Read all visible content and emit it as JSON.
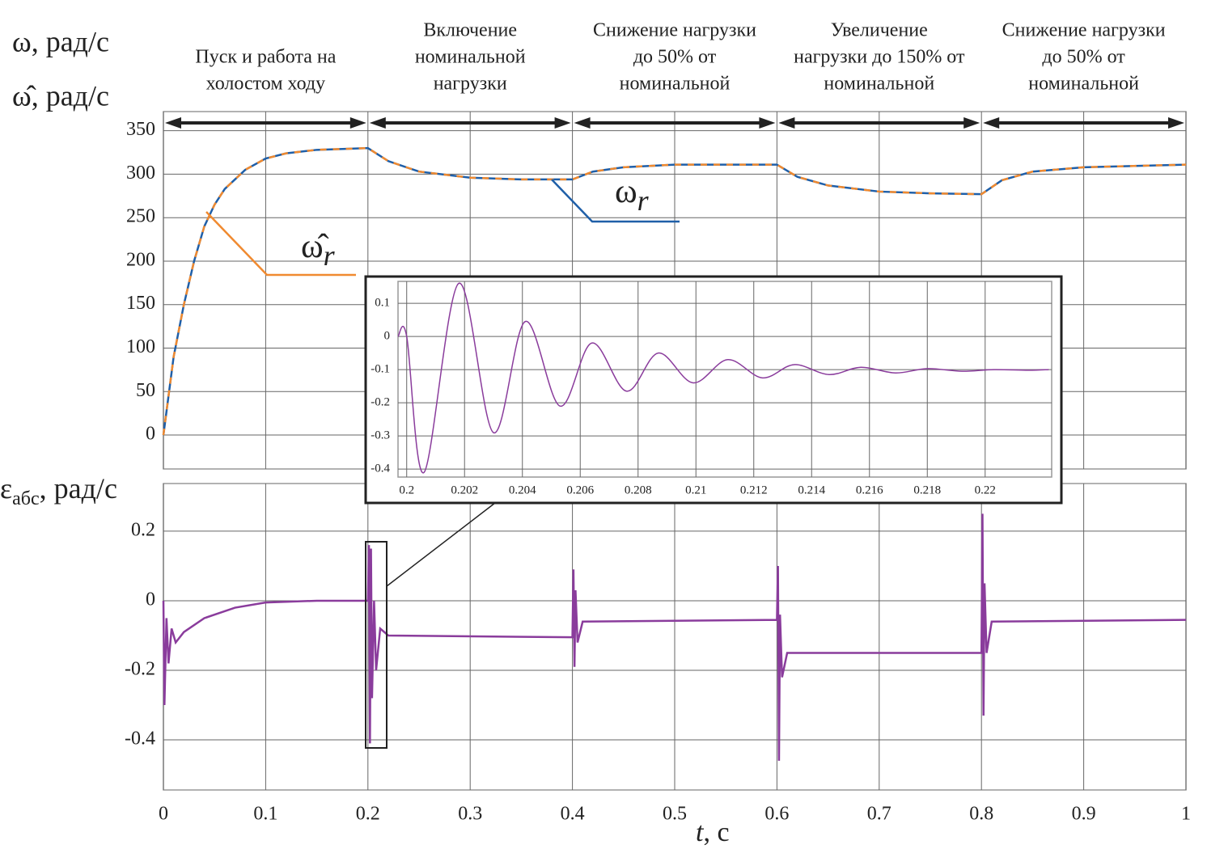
{
  "charts": [
    {
      "type": "line",
      "y_labels": [
        "ω, рад/с",
        "ω̂, рад/с"
      ],
      "x": [
        0,
        0.01,
        0.02,
        0.03,
        0.04,
        0.05,
        0.06,
        0.08,
        0.1,
        0.12,
        0.15,
        0.2,
        0.22,
        0.25,
        0.3,
        0.35,
        0.4,
        0.42,
        0.45,
        0.5,
        0.6,
        0.62,
        0.65,
        0.7,
        0.75,
        0.8,
        0.82,
        0.85,
        0.9,
        1.0
      ],
      "series": [
        {
          "name": "ω",
          "name_subscript": "r",
          "color": "#1f5fa8",
          "dashed": false,
          "values": [
            0,
            90,
            150,
            200,
            240,
            265,
            283,
            305,
            318,
            324,
            328,
            330,
            315,
            303,
            296,
            294,
            294,
            303,
            308,
            311,
            311,
            297,
            287,
            280,
            278,
            277,
            293,
            303,
            308,
            311
          ]
        },
        {
          "name": "ω̂",
          "name_subscript": "r",
          "color": "#f08a30",
          "dashed": true,
          "values": [
            0,
            90,
            150,
            200,
            240,
            265,
            283,
            305,
            318,
            324,
            328,
            330,
            315,
            303,
            296,
            294,
            294,
            303,
            308,
            311,
            311,
            297,
            287,
            280,
            278,
            277,
            293,
            303,
            308,
            311
          ]
        }
      ],
      "xlim": [
        0,
        1
      ],
      "xticks": [
        0,
        0.1,
        0.2,
        0.3,
        0.4,
        0.5,
        0.6,
        0.7,
        0.8,
        0.9,
        1
      ],
      "show_xtick_labels": false,
      "ylim": [
        -39,
        372
      ],
      "yticks": [
        0,
        50,
        100,
        150,
        200,
        250,
        300,
        350
      ],
      "grid": true,
      "phases": [
        {
          "lines": [
            "Пуск и работа на",
            "холостом ходу"
          ],
          "t_start": 0,
          "t_end": 0.2
        },
        {
          "lines": [
            "Включение",
            "номинальной",
            "нагрузки"
          ],
          "t_start": 0.2,
          "t_end": 0.4
        },
        {
          "lines": [
            "Снижение нагрузки",
            "до 50% от",
            "номинальной"
          ],
          "t_start": 0.4,
          "t_end": 0.6
        },
        {
          "lines": [
            "Увеличение",
            "нагрузки до 150% от",
            "номинальной"
          ],
          "t_start": 0.6,
          "t_end": 0.8
        },
        {
          "lines": [
            "Снижение нагрузки",
            "до 50% от",
            "номинальной"
          ],
          "t_start": 0.8,
          "t_end": 1.0
        }
      ]
    },
    {
      "type": "line",
      "y_label_parts": [
        "ε",
        "абс",
        ", рад/с"
      ],
      "x_label_parts": [
        "t",
        ", с"
      ],
      "x": [
        0,
        0.001,
        0.003,
        0.005,
        0.008,
        0.012,
        0.02,
        0.04,
        0.07,
        0.1,
        0.15,
        0.2,
        0.201,
        0.202,
        0.203,
        0.204,
        0.206,
        0.208,
        0.212,
        0.22,
        0.4,
        0.401,
        0.402,
        0.403,
        0.405,
        0.41,
        0.6,
        0.601,
        0.602,
        0.603,
        0.605,
        0.61,
        0.8,
        0.801,
        0.802,
        0.803,
        0.805,
        0.81,
        1.0
      ],
      "series": [
        {
          "color": "#8a3c9c",
          "values": [
            0,
            -0.3,
            -0.05,
            -0.18,
            -0.08,
            -0.12,
            -0.09,
            -0.05,
            -0.02,
            -0.005,
            0,
            0,
            0.16,
            -0.41,
            0.15,
            -0.28,
            0.0,
            -0.2,
            -0.08,
            -0.1,
            -0.105,
            0.09,
            -0.19,
            0.03,
            -0.12,
            -0.06,
            -0.055,
            0.1,
            -0.46,
            -0.04,
            -0.22,
            -0.15,
            -0.15,
            0.25,
            -0.33,
            0.05,
            -0.15,
            -0.06,
            -0.055
          ]
        }
      ],
      "xlim": [
        0,
        1
      ],
      "xticks": [
        0,
        0.1,
        0.2,
        0.3,
        0.4,
        0.5,
        0.6,
        0.7,
        0.8,
        0.9,
        1
      ],
      "show_xtick_labels": true,
      "ylim": [
        -0.544,
        0.337
      ],
      "yticks": [
        0.2,
        0,
        -0.2,
        -0.4
      ],
      "grid": true
    },
    {
      "type": "line",
      "curve": "smooth",
      "x": [
        0.1997,
        0.2,
        0.2006,
        0.2018,
        0.203,
        0.2041,
        0.2053,
        0.2064,
        0.2076,
        0.2087,
        0.2099,
        0.2111,
        0.2123,
        0.2134,
        0.2146,
        0.2157,
        0.2169,
        0.218,
        0.2192,
        0.2203,
        0.2215,
        0.2222
      ],
      "series": [
        {
          "color": "#8a3c9c",
          "values": [
            0,
            0,
            -0.41,
            0.16,
            -0.29,
            0.045,
            -0.21,
            -0.02,
            -0.165,
            -0.05,
            -0.14,
            -0.07,
            -0.125,
            -0.085,
            -0.115,
            -0.093,
            -0.11,
            -0.097,
            -0.105,
            -0.1,
            -0.102,
            -0.1
          ]
        }
      ],
      "xlim": [
        0.1997,
        0.2223
      ],
      "xticks": [
        0.2,
        0.202,
        0.204,
        0.206,
        0.208,
        0.21,
        0.212,
        0.214,
        0.216,
        0.218,
        0.22
      ],
      "show_xtick_labels": true,
      "ylim": [
        -0.424,
        0.166
      ],
      "yticks": [
        0.1,
        0,
        -0.1,
        -0.2,
        -0.3,
        -0.4
      ],
      "grid": true
    }
  ]
}
